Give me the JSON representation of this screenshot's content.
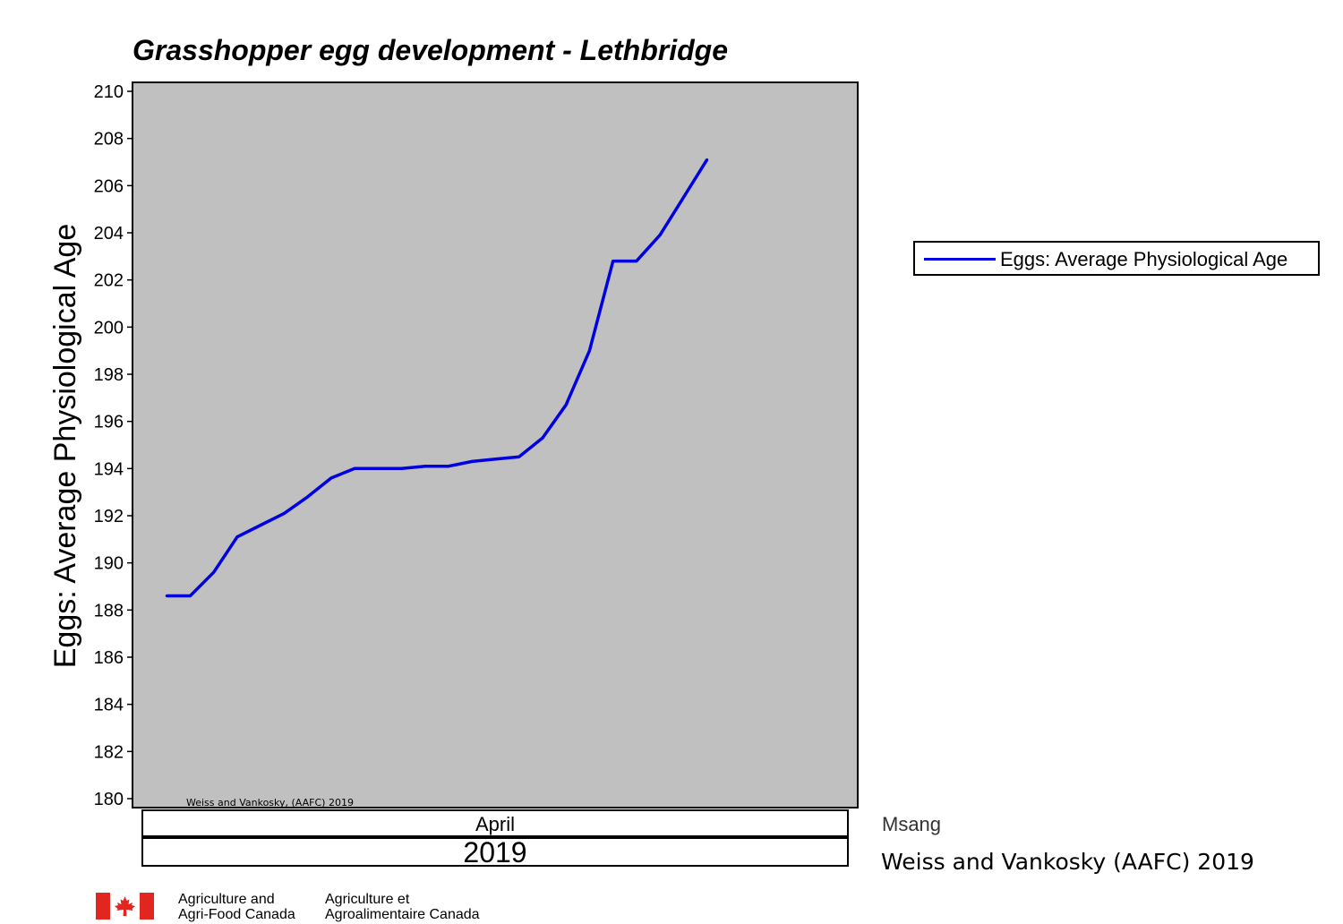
{
  "chart_data": {
    "type": "line",
    "title": "Grasshopper egg development - Lethbridge",
    "ylabel": "Eggs: Average Physiological Age",
    "ylim": [
      180,
      210
    ],
    "yticks": [
      "180",
      "182",
      "184",
      "186",
      "188",
      "190",
      "192",
      "194",
      "196",
      "198",
      "200",
      "202",
      "204",
      "206",
      "208",
      "210"
    ],
    "x_period_label": "April",
    "x_year_label": "2019",
    "inner_watermark": "Weiss and Vankosky, (AAFC) 2019",
    "legend_position": "right",
    "colors": {
      "plot_bg": "#c0c0c0",
      "series": "#0000e0"
    },
    "series": [
      {
        "name": "Eggs: Average Physiological Age",
        "x": [
          1,
          2,
          3,
          4,
          5,
          6,
          7,
          8,
          9,
          10,
          11,
          12,
          13,
          14,
          15,
          16,
          17,
          18,
          19,
          20,
          21,
          22,
          23,
          24
        ],
        "values": [
          188.6,
          188.6,
          189.6,
          191.1,
          191.6,
          192.1,
          192.8,
          193.6,
          194.0,
          194.0,
          194.0,
          194.1,
          194.1,
          194.3,
          194.4,
          194.5,
          195.3,
          196.7,
          199.0,
          202.8,
          202.8,
          203.9,
          205.5,
          207.1
        ]
      }
    ]
  },
  "legend": {
    "label": "Eggs: Average Physiological Age",
    "color": "#0000e0"
  },
  "station": "Msang",
  "credit": "Weiss and Vankosky (AAFC) 2019",
  "agency": {
    "en_line1": "Agriculture and",
    "en_line2": "Agri-Food Canada",
    "fr_line1": "Agriculture et",
    "fr_line2": "Agroalimentaire Canada"
  }
}
